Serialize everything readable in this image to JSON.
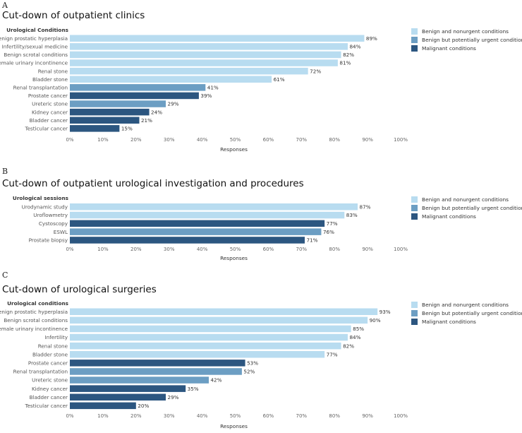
{
  "colors": {
    "benign": "#b8dcf0",
    "urgent": "#6c9ec3",
    "malignant": "#2c5680"
  },
  "legend": [
    {
      "key": "benign",
      "label": "Benign and nonurgent conditions"
    },
    {
      "key": "urgent",
      "label": "Benign but potentially urgent conditions"
    },
    {
      "key": "malignant",
      "label": "Malignant conditions"
    }
  ],
  "panels": [
    {
      "letter": "A",
      "title": "Cut-down of outpatient clinics"
    },
    {
      "letter": "B",
      "title": "Cut-down of outpatient urological investigation and procedures"
    },
    {
      "letter": "C",
      "title": "Cut-down of urological surgeries"
    }
  ],
  "chart_data": [
    {
      "type": "bar",
      "orientation": "horizontal",
      "title": "Cut-down of outpatient clinics",
      "category_header": "Urological Conditions",
      "xlabel": "Responses",
      "xlim": [
        0,
        100
      ],
      "xticks": [
        "0%",
        "10%",
        "20%",
        "30%",
        "40%",
        "50%",
        "60%",
        "70%",
        "80%",
        "90%",
        "100%"
      ],
      "categories": [
        "Benign prostatic hyperplasia",
        "Infertility/sexual medicine",
        "Benign scrotal conditions",
        "Female urinary incontinence",
        "Renal stone",
        "Bladder stone",
        "Renal transplantation",
        "Prostate cancer",
        "Ureteric stone",
        "Kidney cancer",
        "Bladder cancer",
        "Testicular cancer"
      ],
      "values": [
        89,
        84,
        82,
        81,
        72,
        61,
        41,
        39,
        29,
        24,
        21,
        15
      ],
      "value_labels": [
        "89%",
        "84%",
        "82%",
        "81%",
        "72%",
        "61%",
        "41%",
        "39%",
        "29%",
        "24%",
        "21%",
        "15%"
      ],
      "groups": [
        "benign",
        "benign",
        "benign",
        "benign",
        "benign",
        "benign",
        "urgent",
        "malignant",
        "urgent",
        "malignant",
        "malignant",
        "malignant"
      ]
    },
    {
      "type": "bar",
      "orientation": "horizontal",
      "title": "Cut-down of outpatient urological investigation and procedures",
      "category_header": "Urological sessions",
      "xlabel": "Responses",
      "xlim": [
        0,
        100
      ],
      "xticks": [
        "0%",
        "10%",
        "20%",
        "30%",
        "40%",
        "50%",
        "60%",
        "70%",
        "80%",
        "90%",
        "100%"
      ],
      "categories": [
        "Urodynamic study",
        "Uroflowmetry",
        "Cystoscopy",
        "ESWL",
        "Prostate biopsy"
      ],
      "values": [
        87,
        83,
        77,
        76,
        71
      ],
      "value_labels": [
        "87%",
        "83%",
        "77%",
        "76%",
        "71%"
      ],
      "groups": [
        "benign",
        "benign",
        "malignant",
        "urgent",
        "malignant"
      ]
    },
    {
      "type": "bar",
      "orientation": "horizontal",
      "title": "Cut-down of urological surgeries",
      "category_header": "Urological conditions",
      "xlabel": "Responses",
      "xlim": [
        0,
        100
      ],
      "xticks": [
        "0%",
        "10%",
        "20%",
        "30%",
        "40%",
        "50%",
        "60%",
        "70%",
        "80%",
        "90%",
        "100%"
      ],
      "categories": [
        "Benign prostatic hyperplasia",
        "Benign scrotal conditions",
        "Female urinary incontinence",
        "Infertility",
        "Renal stone",
        "Bladder stone",
        "Prostate cancer",
        "Renal transplantation",
        "Ureteric stone",
        "Kidney cancer",
        "Bladder cancer",
        "Testicular cancer"
      ],
      "values": [
        93,
        90,
        85,
        84,
        82,
        77,
        53,
        52,
        42,
        35,
        29,
        20
      ],
      "value_labels": [
        "93%",
        "90%",
        "85%",
        "84%",
        "82%",
        "77%",
        "53%",
        "52%",
        "42%",
        "35%",
        "29%",
        "20%"
      ],
      "groups": [
        "benign",
        "benign",
        "benign",
        "benign",
        "benign",
        "benign",
        "malignant",
        "urgent",
        "urgent",
        "malignant",
        "malignant",
        "malignant"
      ]
    }
  ]
}
